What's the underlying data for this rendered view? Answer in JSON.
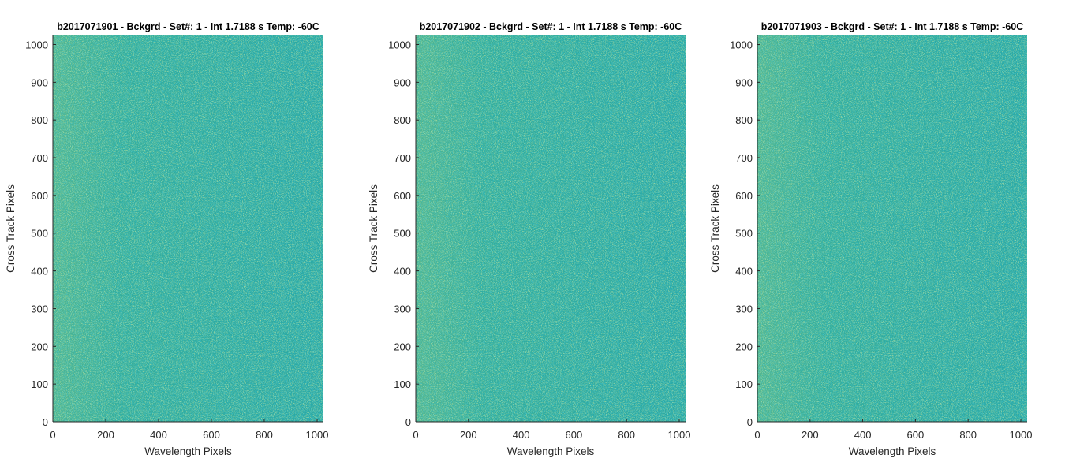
{
  "chart_data": [
    {
      "type": "heatmap",
      "title": "b2017071901 - Bckgrd - Set#: 1 - Int 1.7188 s Temp: -60C",
      "xlabel": "Wavelength Pixels",
      "ylabel": "Cross Track Pixels",
      "xlim": [
        0,
        1024
      ],
      "ylim": [
        0,
        1024
      ],
      "xticks": [
        0,
        200,
        400,
        600,
        800,
        1000
      ],
      "yticks": [
        0,
        100,
        200,
        300,
        400,
        500,
        600,
        700,
        800,
        900,
        1000
      ],
      "xtick_labels": [
        "0",
        "200",
        "400",
        "600",
        "800",
        "1000"
      ],
      "ytick_labels": [
        "0",
        "100",
        "200",
        "300",
        "400",
        "500",
        "600",
        "700",
        "800",
        "900",
        "1000"
      ],
      "colormap": "parula",
      "grid": false
    },
    {
      "type": "heatmap",
      "title": "b2017071902 - Bckgrd - Set#: 1 - Int 1.7188 s Temp: -60C",
      "xlabel": "Wavelength Pixels",
      "ylabel": "Cross Track Pixels",
      "xlim": [
        0,
        1024
      ],
      "ylim": [
        0,
        1024
      ],
      "xticks": [
        0,
        200,
        400,
        600,
        800,
        1000
      ],
      "yticks": [
        0,
        100,
        200,
        300,
        400,
        500,
        600,
        700,
        800,
        900,
        1000
      ],
      "xtick_labels": [
        "0",
        "200",
        "400",
        "600",
        "800",
        "1000"
      ],
      "ytick_labels": [
        "0",
        "100",
        "200",
        "300",
        "400",
        "500",
        "600",
        "700",
        "800",
        "900",
        "1000"
      ],
      "colormap": "parula",
      "grid": false
    },
    {
      "type": "heatmap",
      "title": "b2017071903 - Bckgrd - Set#: 1 - Int 1.7188 s Temp: -60C",
      "xlabel": "Wavelength Pixels",
      "ylabel": "Cross Track Pixels",
      "xlim": [
        0,
        1024
      ],
      "ylim": [
        0,
        1024
      ],
      "xticks": [
        0,
        200,
        400,
        600,
        800,
        1000
      ],
      "yticks": [
        0,
        100,
        200,
        300,
        400,
        500,
        600,
        700,
        800,
        900,
        1000
      ],
      "xtick_labels": [
        "0",
        "200",
        "400",
        "600",
        "800",
        "1000"
      ],
      "ytick_labels": [
        "0",
        "100",
        "200",
        "300",
        "400",
        "500",
        "600",
        "700",
        "800",
        "900",
        "1000"
      ],
      "colormap": "parula",
      "grid": false
    }
  ],
  "colors": {
    "base": "#2aa8a4",
    "teal_dark": "#1a9fb0",
    "yellow_green": "#8fc36a",
    "axis": "#262626",
    "background": "#ffffff"
  }
}
